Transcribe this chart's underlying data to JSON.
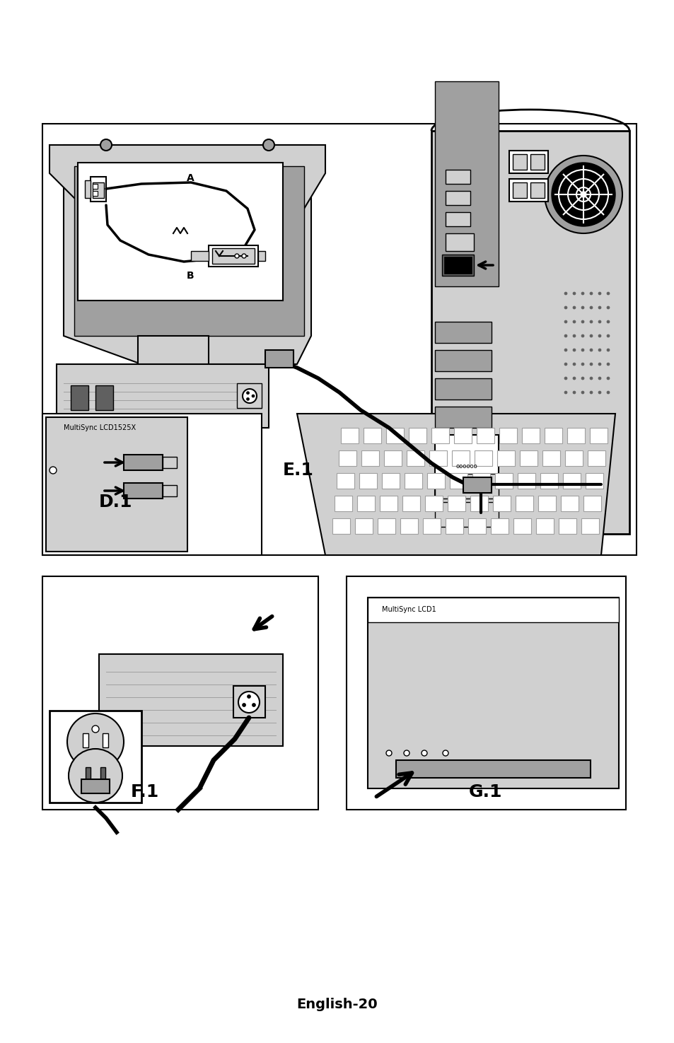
{
  "bg_color": "#ffffff",
  "border_color": "#000000",
  "gray_light": "#d0d0d0",
  "gray_mid": "#a0a0a0",
  "gray_dark": "#606060",
  "gray_box": "#b8b8b8",
  "footer_text": "English-20",
  "footer_fontsize": 14,
  "footer_bold": true,
  "label_d1": "D.1",
  "label_e1": "E.1",
  "label_f1": "F.1",
  "label_g1": "G.1",
  "label_fontsize": 16,
  "label_bold": true,
  "label_a": "A",
  "label_b": "B",
  "label_ab_fontsize": 10,
  "multisync_text": "MultiSync LCD1525X",
  "multisync_fontsize": 7
}
